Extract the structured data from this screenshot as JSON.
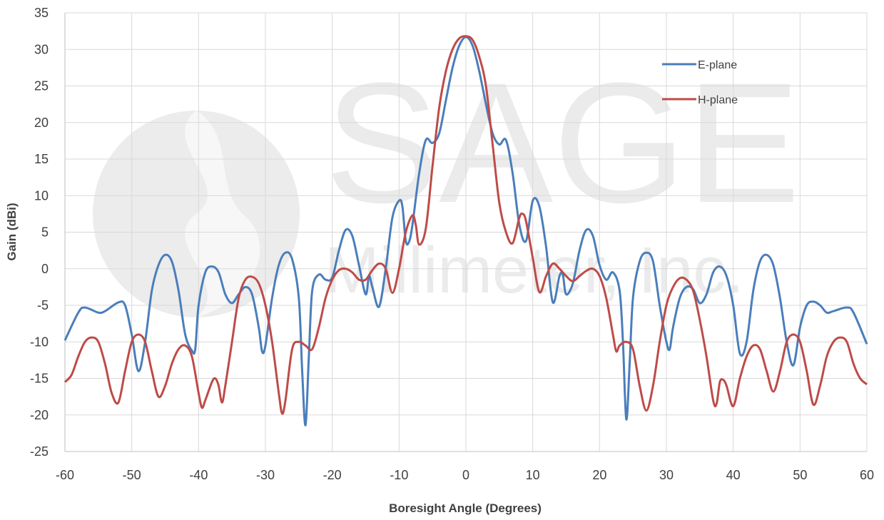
{
  "chart_data": {
    "type": "line",
    "xlabel": "Boresight Angle (Degrees)",
    "ylabel": "Gain (dBi)",
    "watermark": [
      "SAGE",
      "Millimeter, Inc."
    ],
    "xlim": [
      -60,
      60
    ],
    "xticks": [
      -60,
      -50,
      -40,
      -30,
      -20,
      -10,
      0,
      10,
      20,
      30,
      40,
      50,
      60
    ],
    "ylim": [
      -25,
      35
    ],
    "yticks": [
      -25,
      -20,
      -15,
      -10,
      -5,
      0,
      5,
      10,
      15,
      20,
      25,
      30,
      35
    ],
    "grid": true,
    "legend": "upper right",
    "series": [
      {
        "name": "E-plane",
        "color": "#4a7ebb",
        "x": [
          -60,
          -58,
          -57,
          -55,
          -54,
          -52,
          -51,
          -50,
          -49,
          -48,
          -47,
          -46,
          -45,
          -44,
          -43,
          -42,
          -41,
          -40.5,
          -40,
          -39,
          -38,
          -37,
          -36,
          -35,
          -34,
          -33,
          -32,
          -31,
          -30.5,
          -30,
          -29,
          -28,
          -27,
          -26,
          -25,
          -24.5,
          -24,
          -23.5,
          -23,
          -22,
          -21,
          -20,
          -19,
          -18,
          -17,
          -16,
          -15,
          -14.5,
          -14,
          -13,
          -12,
          -11,
          -10,
          -9.5,
          -9,
          -8.5,
          -8,
          -7,
          -6,
          -5,
          -4,
          -3,
          -2,
          -1,
          0,
          1,
          2,
          3,
          4,
          5,
          6,
          7,
          8,
          9,
          10,
          11,
          12,
          13,
          14,
          14.5,
          15,
          16,
          17,
          18,
          19,
          20,
          21,
          22,
          23,
          23.5,
          24,
          24.5,
          25,
          26,
          27,
          28,
          29,
          30,
          30.5,
          31,
          32,
          33,
          34,
          35,
          36,
          37,
          38,
          39,
          40,
          41,
          42,
          43,
          44,
          45,
          46,
          47,
          48,
          49,
          50,
          51,
          52,
          53,
          54,
          55,
          57,
          58,
          60
        ],
        "values": [
          -9.8,
          -6,
          -5.3,
          -6,
          -5.8,
          -4.6,
          -5,
          -9,
          -14,
          -10,
          -3,
          0.5,
          1.9,
          1,
          -3,
          -9,
          -11.2,
          -11,
          -5,
          -0.5,
          0.3,
          -0.5,
          -3.5,
          -4.7,
          -3.5,
          -2.5,
          -3.5,
          -8,
          -11.3,
          -10.5,
          -4,
          0.5,
          2.2,
          1.3,
          -4,
          -14,
          -21.4,
          -12,
          -3,
          -0.8,
          -1.5,
          -1.2,
          2.5,
          5.3,
          4.5,
          0.5,
          -3.5,
          -1,
          -2.5,
          -5.2,
          0,
          7,
          9.3,
          8.5,
          3.8,
          3.7,
          6,
          13,
          17.6,
          17.2,
          18.5,
          23,
          27.5,
          30.5,
          31.7,
          30.5,
          27,
          22.5,
          18.5,
          17,
          17.6,
          13,
          6,
          3.8,
          9.3,
          8.5,
          3,
          -4.6,
          -1,
          -0.8,
          -3.5,
          -2,
          2.5,
          5.3,
          4.5,
          0.5,
          -1.5,
          -0.5,
          -3,
          -10,
          -20.6,
          -13,
          -4,
          1,
          2.2,
          1,
          -5,
          -10,
          -11,
          -8,
          -4,
          -2.5,
          -2.8,
          -4.7,
          -3.5,
          -0.5,
          0.3,
          -1,
          -5,
          -11.6,
          -10,
          -3,
          1,
          1.9,
          0.5,
          -4,
          -10,
          -13.2,
          -8,
          -5,
          -4.5,
          -5,
          -6,
          -5.8,
          -5.3,
          -6,
          -10.3
        ]
      },
      {
        "name": "H-plane",
        "color": "#be4b48",
        "x": [
          -60,
          -59,
          -58,
          -57,
          -56,
          -55,
          -54,
          -53,
          -52,
          -51,
          -50,
          -49,
          -48,
          -47,
          -46,
          -45,
          -44,
          -43,
          -42,
          -41,
          -40,
          -39.5,
          -39,
          -38,
          -37.5,
          -37,
          -36.5,
          -36,
          -35,
          -34,
          -33,
          -32,
          -31,
          -30,
          -29,
          -28,
          -27.5,
          -27,
          -26,
          -25,
          -24,
          -23,
          -22,
          -21,
          -20,
          -19,
          -18,
          -17,
          -16,
          -15,
          -14,
          -13,
          -12,
          -11,
          -10,
          -9,
          -8,
          -7.5,
          -7,
          -6,
          -5,
          -4,
          -3,
          -2,
          -1,
          0,
          1,
          2,
          3,
          4,
          5,
          6,
          7,
          8,
          8.5,
          9,
          10,
          11,
          12,
          13,
          14,
          15,
          16,
          17,
          18,
          19,
          20,
          21,
          22,
          22.5,
          23,
          24,
          25,
          26,
          27,
          28,
          29,
          30,
          31,
          32,
          33,
          34,
          35,
          36,
          37,
          37.5,
          38,
          38.5,
          39,
          40,
          41,
          42,
          43,
          44,
          45,
          46,
          47,
          48,
          49,
          50,
          51,
          52,
          53,
          54,
          55,
          56,
          57,
          58,
          59,
          60
        ],
        "values": [
          -15.5,
          -14.5,
          -12,
          -10,
          -9.4,
          -10,
          -13,
          -17,
          -18.3,
          -14,
          -10,
          -9,
          -10,
          -14,
          -17.5,
          -16,
          -13,
          -11,
          -10.5,
          -12,
          -17,
          -19,
          -18,
          -15.5,
          -15,
          -16,
          -18.3,
          -16,
          -10,
          -4,
          -1.5,
          -1.1,
          -2,
          -5,
          -10,
          -17,
          -19.8,
          -18,
          -11,
          -10,
          -10.5,
          -11,
          -8,
          -4,
          -1.5,
          -0.2,
          0,
          -0.5,
          -1.5,
          -1.5,
          -0.2,
          0.7,
          0,
          -3.3,
          0,
          5,
          7.3,
          6,
          3.3,
          5.5,
          14,
          22,
          27,
          30,
          31.5,
          31.8,
          31.3,
          29,
          25,
          17,
          9,
          5,
          3.5,
          7,
          7.5,
          6.5,
          1.5,
          -3.2,
          -1,
          0.7,
          0,
          -1,
          -1.7,
          -1,
          -0.3,
          0,
          -1,
          -4,
          -9,
          -11.3,
          -10.5,
          -10,
          -11,
          -16,
          -19.4,
          -16,
          -10,
          -5,
          -2.5,
          -1.3,
          -1.5,
          -3,
          -7,
          -12,
          -18,
          -18.5,
          -15.5,
          -15.2,
          -16,
          -18.8,
          -15,
          -12,
          -10.5,
          -11,
          -14,
          -16.8,
          -14,
          -10,
          -9,
          -10,
          -14,
          -18.6,
          -16,
          -12,
          -10,
          -9.4,
          -10,
          -13,
          -15,
          -15.8
        ]
      }
    ]
  }
}
